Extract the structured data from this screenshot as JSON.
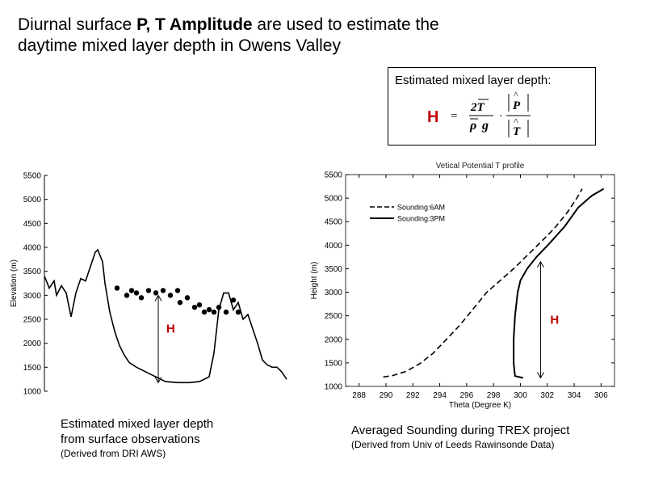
{
  "slide": {
    "title_part1": "Diurnal surface ",
    "title_bold": "P, T Amplitude",
    "title_part2": " are used to estimate the",
    "title_line2": "daytime mixed layer depth in Owens Valley"
  },
  "formula": {
    "caption": "Estimated mixed layer depth:",
    "lhs": "H",
    "equals": "=",
    "num": "2T",
    "den_rho": "ρ",
    "den_g": "g",
    "dot": "·",
    "frac2_num": "P",
    "frac2_den": "T",
    "hat": "^",
    "h_color": "#c00000"
  },
  "left_caption": {
    "line1": "Estimated mixed layer depth",
    "line2": "from surface observations",
    "line3": "(Derived from DRI AWS)"
  },
  "right_caption": {
    "line1": "Averaged Sounding during TREX project",
    "line2": "(Derived from Univ of Leeds Rawinsonde Data)"
  },
  "chart_data": [
    {
      "type": "line",
      "title": "",
      "xlabel": "",
      "ylabel": "Elevation (m)",
      "ylim": [
        1000,
        5500
      ],
      "yticks": [
        1000,
        1500,
        2000,
        2500,
        3000,
        3500,
        4000,
        4500,
        5000,
        5500
      ],
      "xticks": [],
      "annotation": "H",
      "annotation_color": "#c00000",
      "mixed_layer_arrow": {
        "x": 0.47,
        "from": 1180,
        "to": 3000
      },
      "series": [
        {
          "name": "Terrain profile",
          "x": [
            0.0,
            0.02,
            0.04,
            0.05,
            0.07,
            0.09,
            0.1,
            0.11,
            0.13,
            0.15,
            0.17,
            0.19,
            0.21,
            0.22,
            0.24,
            0.25,
            0.27,
            0.29,
            0.31,
            0.33,
            0.35,
            0.38,
            0.42,
            0.46,
            0.5,
            0.55,
            0.6,
            0.64,
            0.68,
            0.7,
            0.72,
            0.74,
            0.76,
            0.78,
            0.8,
            0.82,
            0.84,
            0.86,
            0.88,
            0.9,
            0.92,
            0.94,
            0.96,
            0.98,
            1.0
          ],
          "values": [
            3400,
            3150,
            3300,
            3000,
            3200,
            3050,
            2800,
            2550,
            3050,
            3350,
            3300,
            3600,
            3900,
            3950,
            3700,
            3250,
            2650,
            2250,
            1950,
            1750,
            1600,
            1500,
            1400,
            1300,
            1200,
            1180,
            1180,
            1200,
            1300,
            1800,
            2700,
            3050,
            3050,
            2700,
            2850,
            2500,
            2600,
            2300,
            2000,
            1650,
            1550,
            1500,
            1500,
            1400,
            1250
          ]
        },
        {
          "name": "Estimated mixed layer depth",
          "type": "scatter",
          "x": [
            0.3,
            0.34,
            0.36,
            0.38,
            0.4,
            0.43,
            0.46,
            0.49,
            0.52,
            0.55,
            0.56,
            0.59,
            0.62,
            0.64,
            0.66,
            0.68,
            0.7,
            0.72,
            0.75,
            0.78,
            0.8
          ],
          "values": [
            3150,
            3000,
            3100,
            3050,
            2950,
            3100,
            3050,
            3100,
            3000,
            3100,
            2850,
            2950,
            2750,
            2800,
            2650,
            2700,
            2650,
            2750,
            2650,
            2900,
            2650
          ]
        }
      ]
    },
    {
      "type": "line",
      "title": "Vetical Potential T profile",
      "xlabel": "Theta (Degree K)",
      "ylabel": "Height (m)",
      "xlim": [
        287,
        307
      ],
      "ylim": [
        1000,
        5500
      ],
      "xticks": [
        288,
        290,
        292,
        294,
        296,
        298,
        300,
        302,
        304,
        306
      ],
      "yticks": [
        1000,
        1500,
        2000,
        2500,
        3000,
        3500,
        4000,
        4500,
        5000,
        5500
      ],
      "legend": [
        "Sounding:6AM",
        "Sounding:3PM"
      ],
      "legend_position": "top-left",
      "annotation": "H",
      "annotation_color": "#c00000",
      "mixed_layer_arrow": {
        "x": 301.5,
        "from": 1180,
        "to": 3650
      },
      "series": [
        {
          "name": "Sounding:6AM",
          "dash": true,
          "x": [
            289.8,
            290.5,
            291.5,
            292.5,
            293.5,
            294.5,
            295.5,
            296.5,
            297.5,
            298.5,
            299.5,
            300.5,
            301.5,
            302.5,
            303.5,
            304.2,
            304.6
          ],
          "values": [
            1200,
            1230,
            1320,
            1480,
            1700,
            2000,
            2300,
            2650,
            3000,
            3250,
            3500,
            3780,
            4060,
            4350,
            4700,
            5000,
            5200
          ]
        },
        {
          "name": "Sounding:3PM",
          "dash": false,
          "x": [
            300.2,
            299.6,
            299.5,
            299.5,
            299.6,
            299.8,
            300.0,
            300.5,
            301.2,
            302.2,
            303.3,
            304.3,
            305.3,
            306.2
          ],
          "values": [
            1180,
            1220,
            1500,
            2000,
            2500,
            3000,
            3250,
            3500,
            3750,
            4050,
            4400,
            4800,
            5050,
            5200
          ]
        }
      ]
    }
  ]
}
